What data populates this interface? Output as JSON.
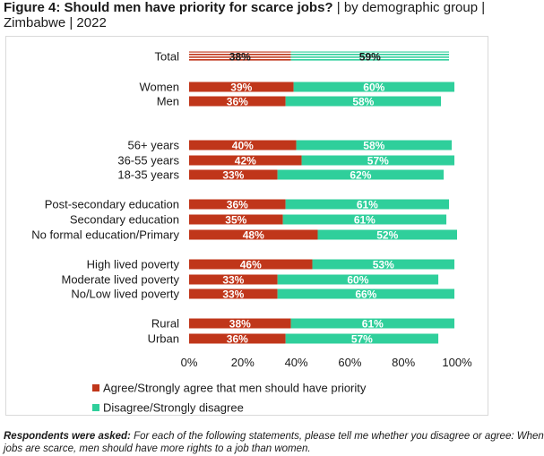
{
  "title": {
    "bold": "Figure 4: Should men have priority for scarce jobs?",
    "rest": " | by demographic group | Zimbabwe | 2022"
  },
  "colors": {
    "agree": "#c0361a",
    "disagree": "#2fcf9b",
    "total_agree_stripe": "#e8a08f",
    "total_disagree_stripe": "#9ee9cf"
  },
  "chart_data": {
    "type": "bar",
    "orientation": "horizontal",
    "stacked": true,
    "title": "Should men have priority for scarce jobs?",
    "categories": [
      "Total",
      "Women",
      "Men",
      "56+ years",
      "36-55 years",
      "18-35 years",
      "Post-secondary education",
      "Secondary education",
      "No formal education/Primary",
      "High lived poverty",
      "Moderate lived poverty",
      "No/Low lived poverty",
      "Rural",
      "Urban"
    ],
    "series": [
      {
        "name": "Agree/Strongly agree that men should have priority",
        "values": [
          38,
          39,
          36,
          40,
          42,
          33,
          36,
          35,
          48,
          46,
          33,
          33,
          38,
          36
        ]
      },
      {
        "name": "Disagree/Strongly disagree",
        "values": [
          59,
          60,
          58,
          58,
          57,
          62,
          61,
          61,
          52,
          53,
          60,
          66,
          61,
          57
        ]
      }
    ],
    "data_labels": {
      "agree": [
        "38%",
        "39%",
        "36%",
        "40%",
        "42%",
        "33%",
        "36%",
        "35%",
        "48%",
        "46%",
        "33%",
        "33%",
        "38%",
        "36%"
      ],
      "disagree": [
        "59%",
        "60%",
        "58%",
        "58%",
        "57%",
        "62%",
        "61%",
        "61%",
        "52%",
        "53%",
        "60%",
        "66%",
        "61%",
        "57%"
      ]
    },
    "xlim": [
      0,
      100
    ],
    "xticks": [
      "0%",
      "20%",
      "40%",
      "60%",
      "80%",
      "100%"
    ],
    "legend": "bottom"
  },
  "footnote": {
    "label": "Respondents were asked:",
    "text": " For each of the following statements, please tell me whether you disagree or agree: When jobs are scarce, men should have more rights to a job than women."
  }
}
